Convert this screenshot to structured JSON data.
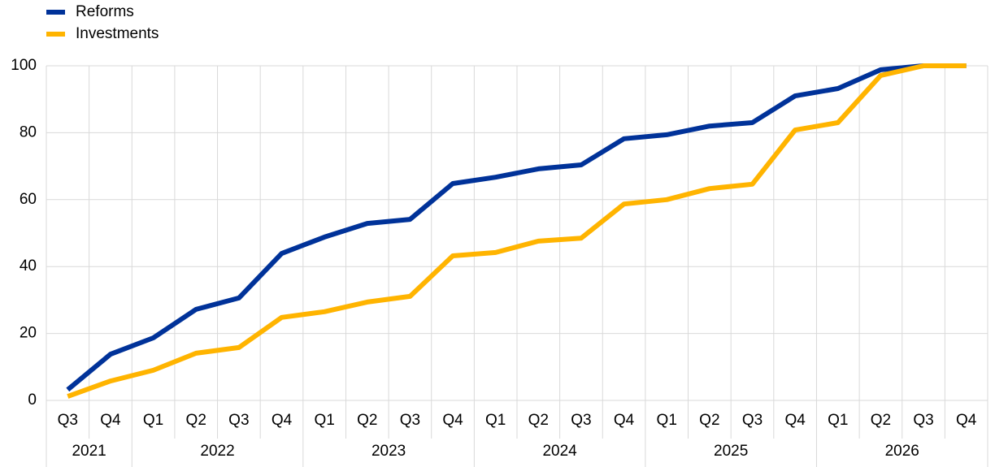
{
  "chart_data": {
    "type": "line",
    "categories": [
      "Q3",
      "Q4",
      "Q1",
      "Q2",
      "Q3",
      "Q4",
      "Q1",
      "Q2",
      "Q3",
      "Q4",
      "Q1",
      "Q2",
      "Q3",
      "Q4",
      "Q1",
      "Q2",
      "Q3",
      "Q4",
      "Q1",
      "Q2",
      "Q3",
      "Q4"
    ],
    "year_labels": [
      "2021",
      "2022",
      "2023",
      "2024",
      "2025",
      "2026"
    ],
    "series": [
      {
        "name": "Reforms",
        "color": "#003299",
        "values": [
          3.2,
          13.8,
          18.7,
          27.2,
          30.6,
          43.9,
          48.8,
          52.9,
          54.1,
          64.8,
          66.7,
          69.2,
          70.4,
          78.2,
          79.4,
          82.0,
          83.0,
          91.0,
          93.2,
          98.8,
          100,
          100
        ]
      },
      {
        "name": "Investments",
        "color": "#ffb400",
        "values": [
          1.2,
          5.8,
          9.0,
          14.1,
          15.8,
          24.8,
          26.5,
          29.4,
          31.1,
          43.2,
          44.2,
          47.6,
          48.5,
          58.7,
          60.0,
          63.3,
          64.6,
          80.8,
          83.0,
          97.1,
          100,
          100
        ]
      }
    ],
    "ylim": [
      0,
      100
    ],
    "yticks": [
      0,
      20,
      40,
      60,
      80,
      100
    ],
    "grid": true,
    "legend": "top-left"
  }
}
